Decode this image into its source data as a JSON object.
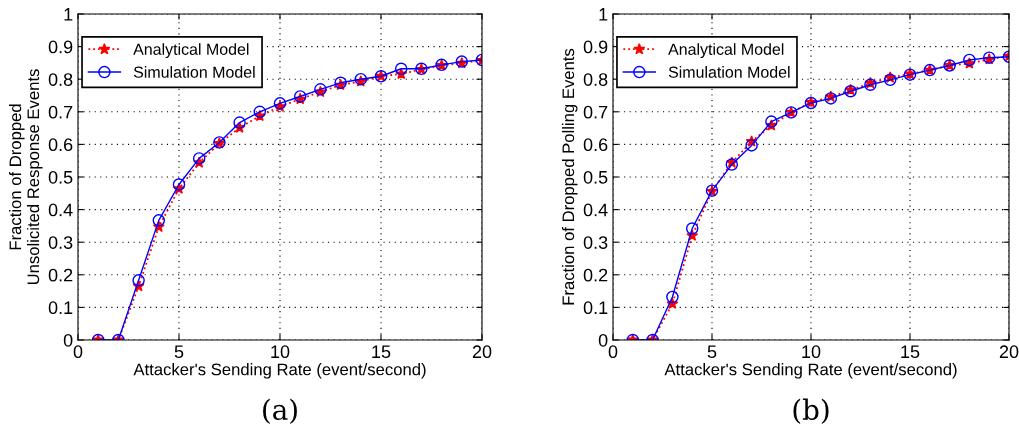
{
  "chart_data": [
    {
      "type": "line",
      "xlabel": "Attacker's Sending Rate (event/second)",
      "ylabel": "Fraction of Dropped\nUnsolicited Response Events",
      "annotations": [
        "(a)"
      ],
      "x": [
        1,
        2,
        3,
        4,
        5,
        6,
        7,
        8,
        9,
        10,
        11,
        12,
        13,
        14,
        15,
        16,
        17,
        18,
        19,
        20
      ],
      "series": [
        {
          "name": "Analytical Model",
          "color": "#ff0000",
          "marker": "star",
          "line_style": "dotted",
          "values": [
            0,
            0,
            0.165,
            0.347,
            0.464,
            0.544,
            0.603,
            0.651,
            0.687,
            0.716,
            0.739,
            0.761,
            0.782,
            0.793,
            0.809,
            0.816,
            0.83,
            0.842,
            0.849,
            0.858
          ]
        },
        {
          "name": "Simulation Model",
          "color": "#0000ff",
          "marker": "circle",
          "line_style": "solid",
          "values": [
            0,
            0,
            0.183,
            0.367,
            0.477,
            0.557,
            0.606,
            0.667,
            0.7,
            0.726,
            0.747,
            0.769,
            0.789,
            0.8,
            0.809,
            0.832,
            0.832,
            0.844,
            0.854,
            0.859
          ]
        }
      ],
      "xlim": [
        0,
        20
      ],
      "xticks": [
        0,
        5,
        10,
        15,
        20
      ],
      "ylim": [
        0,
        1
      ],
      "yticks": [
        0,
        0.1,
        0.2,
        0.3,
        0.4,
        0.5,
        0.6,
        0.7,
        0.8,
        0.9,
        1
      ],
      "grid": true,
      "legend": "top left"
    },
    {
      "type": "line",
      "xlabel": "Attacker's Sending Rate (event/second)",
      "ylabel": "Fraction of Dropped Polling Events",
      "annotations": [
        "(b)"
      ],
      "x": [
        1,
        2,
        3,
        4,
        5,
        6,
        7,
        8,
        9,
        10,
        11,
        12,
        13,
        14,
        15,
        16,
        17,
        18,
        19,
        20
      ],
      "series": [
        {
          "name": "Analytical Model",
          "color": "#ff0000",
          "marker": "star",
          "line_style": "dotted",
          "values": [
            0,
            0,
            0.111,
            0.32,
            0.456,
            0.544,
            0.609,
            0.658,
            0.698,
            0.729,
            0.746,
            0.767,
            0.788,
            0.805,
            0.816,
            0.828,
            0.842,
            0.848,
            0.861,
            0.871
          ]
        },
        {
          "name": "Simulation Model",
          "color": "#0000ff",
          "marker": "circle",
          "line_style": "solid",
          "values": [
            0,
            0,
            0.132,
            0.342,
            0.458,
            0.538,
            0.597,
            0.67,
            0.698,
            0.727,
            0.741,
            0.763,
            0.783,
            0.798,
            0.814,
            0.828,
            0.842,
            0.859,
            0.866,
            0.869
          ]
        }
      ],
      "xlim": [
        0,
        20
      ],
      "xticks": [
        0,
        5,
        10,
        15,
        20
      ],
      "ylim": [
        0,
        1
      ],
      "yticks": [
        0,
        0.1,
        0.2,
        0.3,
        0.4,
        0.5,
        0.6,
        0.7,
        0.8,
        0.9,
        1
      ],
      "grid": true,
      "legend": "top left"
    }
  ]
}
